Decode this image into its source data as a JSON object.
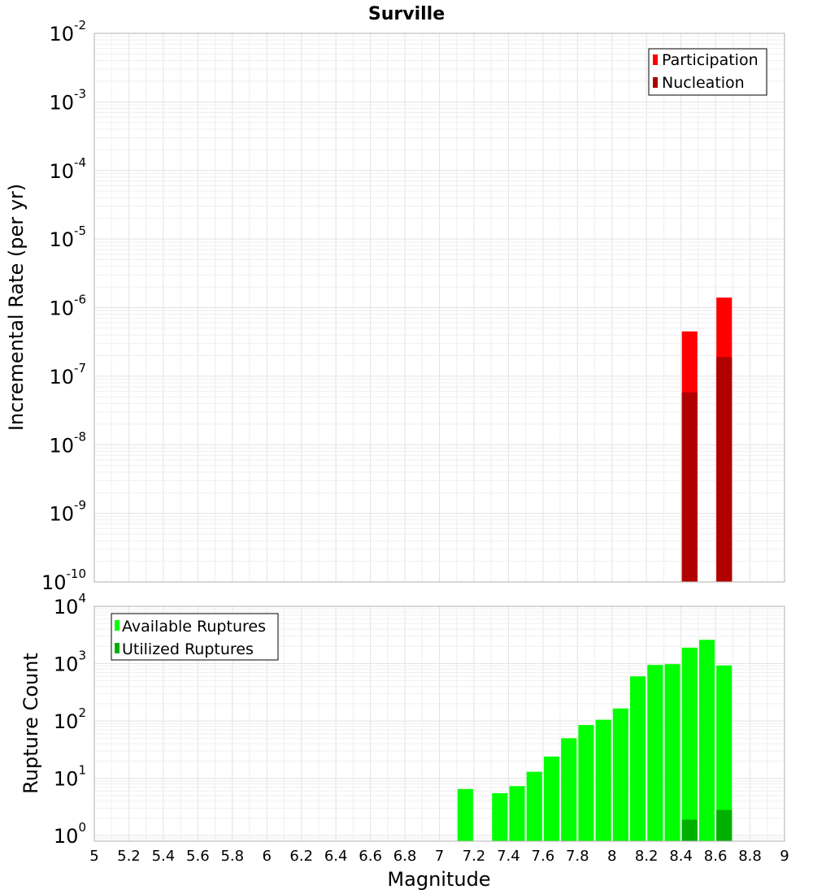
{
  "chart_data": [
    {
      "type": "bar",
      "title": "Surville",
      "ylabel": "Incremental Rate (per yr)",
      "xlabel": "",
      "xlim": [
        5,
        9
      ],
      "yscale": "log",
      "ylim": [
        1e-10,
        0.01
      ],
      "ytick_exponents": [
        -10,
        -9,
        -8,
        -7,
        -6,
        -5,
        -4,
        -3,
        -2
      ],
      "bar_width": 0.09,
      "grid": true,
      "legend_position": "top-right",
      "series": [
        {
          "name": "Participation",
          "color": "#ff0000",
          "x": [
            8.45,
            8.65
          ],
          "values": [
            4.5e-07,
            1.4e-06
          ]
        },
        {
          "name": "Nucleation",
          "color": "#b00000",
          "x": [
            8.45,
            8.65
          ],
          "values": [
            5.8e-08,
            1.9e-07
          ]
        }
      ]
    },
    {
      "type": "bar",
      "ylabel": "Rupture Count",
      "xlabel": "Magnitude",
      "xlim": [
        5,
        9
      ],
      "xticks": [
        "5",
        "5.2",
        "5.4",
        "5.6",
        "5.8",
        "6",
        "6.2",
        "6.4",
        "6.6",
        "6.8",
        "7",
        "7.2",
        "7.4",
        "7.6",
        "7.8",
        "8",
        "8.2",
        "8.4",
        "8.6",
        "8.8",
        "9"
      ],
      "yscale": "log",
      "ylim": [
        0.8,
        10000
      ],
      "ytick_exponents": [
        0,
        1,
        2,
        3,
        4
      ],
      "bar_width": 0.09,
      "grid": true,
      "legend_position": "top-left",
      "series": [
        {
          "name": "Available Ruptures",
          "color": "#00ff00",
          "x": [
            7.15,
            7.35,
            7.45,
            7.55,
            7.65,
            7.75,
            7.85,
            7.95,
            8.05,
            8.15,
            8.25,
            8.35,
            8.45,
            8.55,
            8.65
          ],
          "values": [
            6.5,
            5.5,
            7.3,
            13,
            24,
            50,
            85,
            105,
            165,
            600,
            950,
            980,
            1900,
            2600,
            930
          ]
        },
        {
          "name": "Utilized Ruptures",
          "color": "#00b000",
          "x": [
            8.45,
            8.65
          ],
          "values": [
            1.9,
            2.8
          ]
        }
      ]
    }
  ]
}
